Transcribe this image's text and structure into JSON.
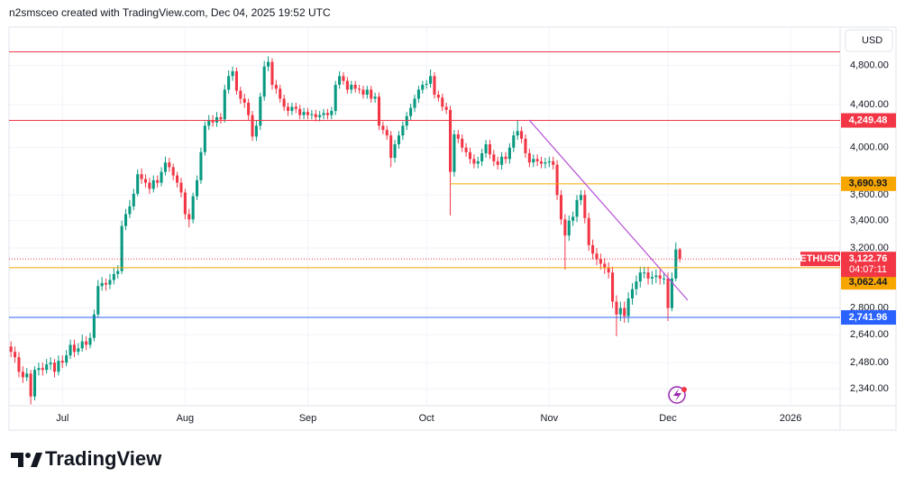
{
  "header": "n2smsceo created with TradingView.com, Dec 04, 2025 19:52 UTC",
  "logo": "TradingView",
  "chart_data": {
    "type": "candlestick",
    "currency": "USD",
    "symbol": "ETHUSD",
    "countdown": "04:07:11",
    "log_scale": true,
    "grid": true,
    "up_color": "#089981",
    "down_color": "#f23645",
    "categories": [
      null,
      null,
      null,
      null,
      null,
      null,
      null,
      null,
      null,
      null,
      null,
      null,
      null,
      null,
      null,
      null,
      null,
      null,
      null,
      null,
      null,
      null,
      null,
      null,
      null,
      null,
      null,
      null,
      null,
      null,
      null,
      null,
      null,
      null,
      null,
      null,
      null,
      null,
      null,
      null,
      null,
      null,
      null,
      null,
      null,
      null,
      null,
      null,
      null,
      null,
      null,
      null,
      null,
      null,
      null,
      null,
      null,
      null,
      null,
      null,
      null,
      null,
      null,
      null,
      null,
      null,
      null,
      null,
      null,
      null,
      null,
      null,
      null,
      null,
      null,
      null,
      null,
      null,
      null,
      null,
      null,
      null,
      null,
      null,
      null,
      null,
      null,
      null,
      null,
      null,
      null,
      null,
      null,
      null,
      null,
      null,
      null,
      null,
      null,
      null,
      null,
      null,
      null,
      null,
      null,
      null,
      null,
      null,
      null,
      null,
      null,
      null,
      null,
      null,
      null,
      null,
      null,
      null,
      null,
      null,
      null,
      null,
      null,
      null,
      null,
      null,
      null,
      null,
      null,
      null,
      null,
      null,
      null,
      null,
      null,
      null,
      null,
      null,
      null,
      null,
      null,
      null,
      null,
      null,
      null,
      null,
      null,
      null,
      null,
      null,
      null,
      null,
      null,
      null,
      null,
      null,
      null,
      null,
      null,
      null,
      null,
      null,
      null,
      null,
      null,
      null,
      null,
      null,
      null,
      null
    ],
    "open": [
      2570,
      2540,
      2510,
      2430,
      2400,
      2420,
      2300,
      2440,
      2450,
      2440,
      2470,
      2480,
      2430,
      2490,
      2480,
      2520,
      2580,
      2540,
      2560,
      2600,
      2580,
      2620,
      2760,
      2940,
      2960,
      2950,
      2980,
      3020,
      3040,
      3360,
      3450,
      3510,
      3610,
      3770,
      3730,
      3700,
      3650,
      3720,
      3700,
      3790,
      3870,
      3830,
      3760,
      3700,
      3620,
      3450,
      3410,
      3590,
      3720,
      3960,
      4200,
      4250,
      4230,
      4280,
      4260,
      4550,
      4690,
      4740,
      4540,
      4460,
      4420,
      4300,
      4100,
      4200,
      4480,
      4790,
      4840,
      4600,
      4560,
      4460,
      4380,
      4340,
      4380,
      4360,
      4300,
      4330,
      4300,
      4310,
      4280,
      4300,
      4320,
      4300,
      4340,
      4600,
      4690,
      4640,
      4550,
      4600,
      4560,
      4550,
      4500,
      4550,
      4460,
      4480,
      4200,
      4160,
      4110,
      3910,
      4030,
      4110,
      4200,
      4290,
      4370,
      4460,
      4550,
      4600,
      4610,
      4690,
      4500,
      4470,
      4380,
      4350,
      3790,
      4120,
      4080,
      4000,
      3960,
      3900,
      3860,
      3880,
      3950,
      4030,
      3940,
      3880,
      3850,
      3920,
      3900,
      4000,
      4110,
      4150,
      4080,
      3950,
      3870,
      3900,
      3880,
      3860,
      3870,
      3880,
      3850,
      3600,
      3410,
      3290,
      3400,
      3430,
      3560,
      3600,
      3420,
      3220,
      3160,
      3120,
      3090,
      3060,
      3030,
      2840,
      2760,
      2800,
      2750,
      2860,
      2920,
      2970,
      3030,
      3030,
      2990,
      3000,
      3010,
      2990,
      2990,
      2800,
      2990,
      3190
    ],
    "high": [
      2600,
      2570,
      2540,
      2460,
      2450,
      2440,
      2460,
      2480,
      2480,
      2500,
      2510,
      2500,
      2520,
      2520,
      2550,
      2610,
      2610,
      2590,
      2640,
      2630,
      2650,
      2790,
      2980,
      3000,
      2990,
      3020,
      3060,
      3080,
      3400,
      3490,
      3560,
      3650,
      3810,
      3820,
      3770,
      3740,
      3760,
      3760,
      3830,
      3920,
      3910,
      3860,
      3790,
      3740,
      3650,
      3490,
      3620,
      3760,
      4000,
      4240,
      4300,
      4300,
      4330,
      4320,
      4600,
      4750,
      4790,
      4780,
      4580,
      4510,
      4460,
      4340,
      4250,
      4520,
      4850,
      4900,
      4880,
      4650,
      4600,
      4500,
      4420,
      4420,
      4420,
      4400,
      4370,
      4370,
      4350,
      4350,
      4340,
      4360,
      4360,
      4380,
      4640,
      4740,
      4730,
      4680,
      4640,
      4640,
      4600,
      4590,
      4590,
      4590,
      4520,
      4520,
      4240,
      4200,
      4150,
      4070,
      4150,
      4240,
      4330,
      4410,
      4500,
      4590,
      4640,
      4650,
      4760,
      4730,
      4540,
      4510,
      4420,
      4390,
      4160,
      4160,
      4120,
      4040,
      4000,
      3940,
      3920,
      3990,
      4070,
      4070,
      3980,
      3920,
      3960,
      3960,
      4040,
      4150,
      4250,
      4190,
      4120,
      3990,
      3940,
      3940,
      3920,
      3910,
      3920,
      3920,
      3890,
      3640,
      3450,
      3440,
      3470,
      3600,
      3640,
      3640,
      3460,
      3260,
      3200,
      3160,
      3130,
      3100,
      3070,
      2880,
      2840,
      2840,
      2900,
      2960,
      3010,
      3070,
      3070,
      3070,
      3040,
      3050,
      3050,
      3030,
      3030,
      3030,
      3240,
      3200
    ],
    "low": [
      2510,
      2480,
      2400,
      2370,
      2380,
      2260,
      2280,
      2410,
      2410,
      2420,
      2440,
      2400,
      2410,
      2450,
      2460,
      2500,
      2510,
      2520,
      2540,
      2550,
      2560,
      2600,
      2740,
      2910,
      2910,
      2920,
      2950,
      2990,
      3020,
      3330,
      3420,
      3480,
      3590,
      3690,
      3660,
      3610,
      3620,
      3660,
      3670,
      3760,
      3790,
      3720,
      3660,
      3580,
      3410,
      3350,
      3380,
      3560,
      3690,
      3930,
      4160,
      4190,
      4190,
      4220,
      4230,
      4510,
      4640,
      4500,
      4410,
      4370,
      4250,
      4060,
      4060,
      4160,
      4440,
      4740,
      4550,
      4510,
      4420,
      4340,
      4290,
      4300,
      4320,
      4260,
      4260,
      4260,
      4260,
      4240,
      4240,
      4260,
      4260,
      4260,
      4300,
      4560,
      4600,
      4510,
      4510,
      4520,
      4510,
      4460,
      4460,
      4420,
      4420,
      4160,
      4120,
      4070,
      3830,
      3870,
      3990,
      4070,
      4160,
      4250,
      4330,
      4420,
      4510,
      4560,
      4570,
      4460,
      4430,
      4340,
      4310,
      3440,
      3750,
      4040,
      3960,
      3920,
      3860,
      3820,
      3820,
      3840,
      3910,
      3900,
      3840,
      3810,
      3810,
      3860,
      3860,
      3960,
      4070,
      4040,
      3910,
      3830,
      3830,
      3840,
      3820,
      3820,
      3830,
      3810,
      3560,
      3370,
      3050,
      3250,
      3360,
      3390,
      3520,
      3380,
      3180,
      3120,
      3080,
      3050,
      3020,
      2990,
      2800,
      2630,
      2720,
      2710,
      2710,
      2820,
      2880,
      2930,
      2990,
      2950,
      2950,
      2960,
      2950,
      2950,
      2720,
      2780,
      2970,
      3100
    ],
    "close": [
      2540,
      2510,
      2430,
      2400,
      2420,
      2300,
      2440,
      2450,
      2440,
      2470,
      2480,
      2430,
      2490,
      2480,
      2520,
      2580,
      2540,
      2560,
      2600,
      2580,
      2620,
      2760,
      2940,
      2960,
      2950,
      2980,
      3020,
      3040,
      3360,
      3450,
      3510,
      3610,
      3770,
      3730,
      3700,
      3650,
      3720,
      3700,
      3790,
      3870,
      3830,
      3760,
      3700,
      3620,
      3450,
      3410,
      3590,
      3720,
      3960,
      4200,
      4250,
      4230,
      4280,
      4260,
      4550,
      4690,
      4740,
      4540,
      4460,
      4420,
      4300,
      4100,
      4200,
      4480,
      4790,
      4840,
      4600,
      4560,
      4460,
      4380,
      4340,
      4380,
      4360,
      4300,
      4330,
      4300,
      4310,
      4280,
      4300,
      4320,
      4300,
      4340,
      4600,
      4690,
      4640,
      4550,
      4600,
      4560,
      4550,
      4500,
      4550,
      4460,
      4480,
      4200,
      4160,
      4110,
      3910,
      4030,
      4110,
      4200,
      4290,
      4370,
      4460,
      4550,
      4600,
      4610,
      4690,
      4500,
      4470,
      4380,
      4350,
      3790,
      4120,
      4080,
      4000,
      3960,
      3900,
      3860,
      3880,
      3950,
      4030,
      3940,
      3880,
      3850,
      3920,
      3900,
      4000,
      4110,
      4150,
      4080,
      3950,
      3870,
      3900,
      3880,
      3860,
      3870,
      3880,
      3850,
      3600,
      3410,
      3290,
      3400,
      3430,
      3560,
      3600,
      3420,
      3220,
      3160,
      3120,
      3090,
      3060,
      3030,
      2840,
      2760,
      2800,
      2750,
      2860,
      2920,
      2970,
      3030,
      3030,
      2990,
      3000,
      3010,
      2990,
      2990,
      2800,
      2990,
      3190,
      3122.76
    ],
    "last_price": {
      "value": 3122.76,
      "label": "3,122.76"
    },
    "levels": [
      {
        "value": 4950,
        "color": "#f23645"
      },
      {
        "value": 4249.48,
        "label": "4,249.48",
        "color": "#f23645",
        "text_color": "#ffffff"
      },
      {
        "value": 3690.93,
        "label": "3,690.93",
        "color": "#f7a600",
        "text_color": "#131722",
        "start": 111
      },
      {
        "value": 3062.44,
        "label": "3,062.44",
        "color": "#f7a600",
        "text_color": "#131722"
      },
      {
        "value": 2741.96,
        "label": "2,741.96",
        "color": "#2962ff",
        "text_color": "#ffffff"
      }
    ],
    "xlim": [
      -0.5,
      209.5
    ],
    "xticks": [
      {
        "value": 13,
        "label": "Jul"
      },
      {
        "value": 44,
        "label": "Aug"
      },
      {
        "value": 75,
        "label": "Sep"
      },
      {
        "value": 105,
        "label": "Oct"
      },
      {
        "value": 136,
        "label": "Nov"
      },
      {
        "value": 166,
        "label": "Dec"
      },
      {
        "value": 197,
        "label": "2026"
      }
    ],
    "ylim": [
      2253,
      5230
    ],
    "yticks": [
      {
        "value": 4800,
        "label": "4,800.00"
      },
      {
        "value": 4400,
        "label": "4,400.00"
      },
      {
        "value": 4000,
        "label": "4,000.00"
      },
      {
        "value": 3600,
        "label": "3,600.00"
      },
      {
        "value": 3400,
        "label": "3,400.00"
      },
      {
        "value": 3200,
        "label": "3,200.00"
      },
      {
        "value": 2800,
        "label": "2,800.00"
      },
      {
        "value": 2640,
        "label": "2,640.00"
      },
      {
        "value": 2480,
        "label": "2,480.00"
      },
      {
        "value": 2340,
        "label": "2,340.00"
      }
    ]
  }
}
